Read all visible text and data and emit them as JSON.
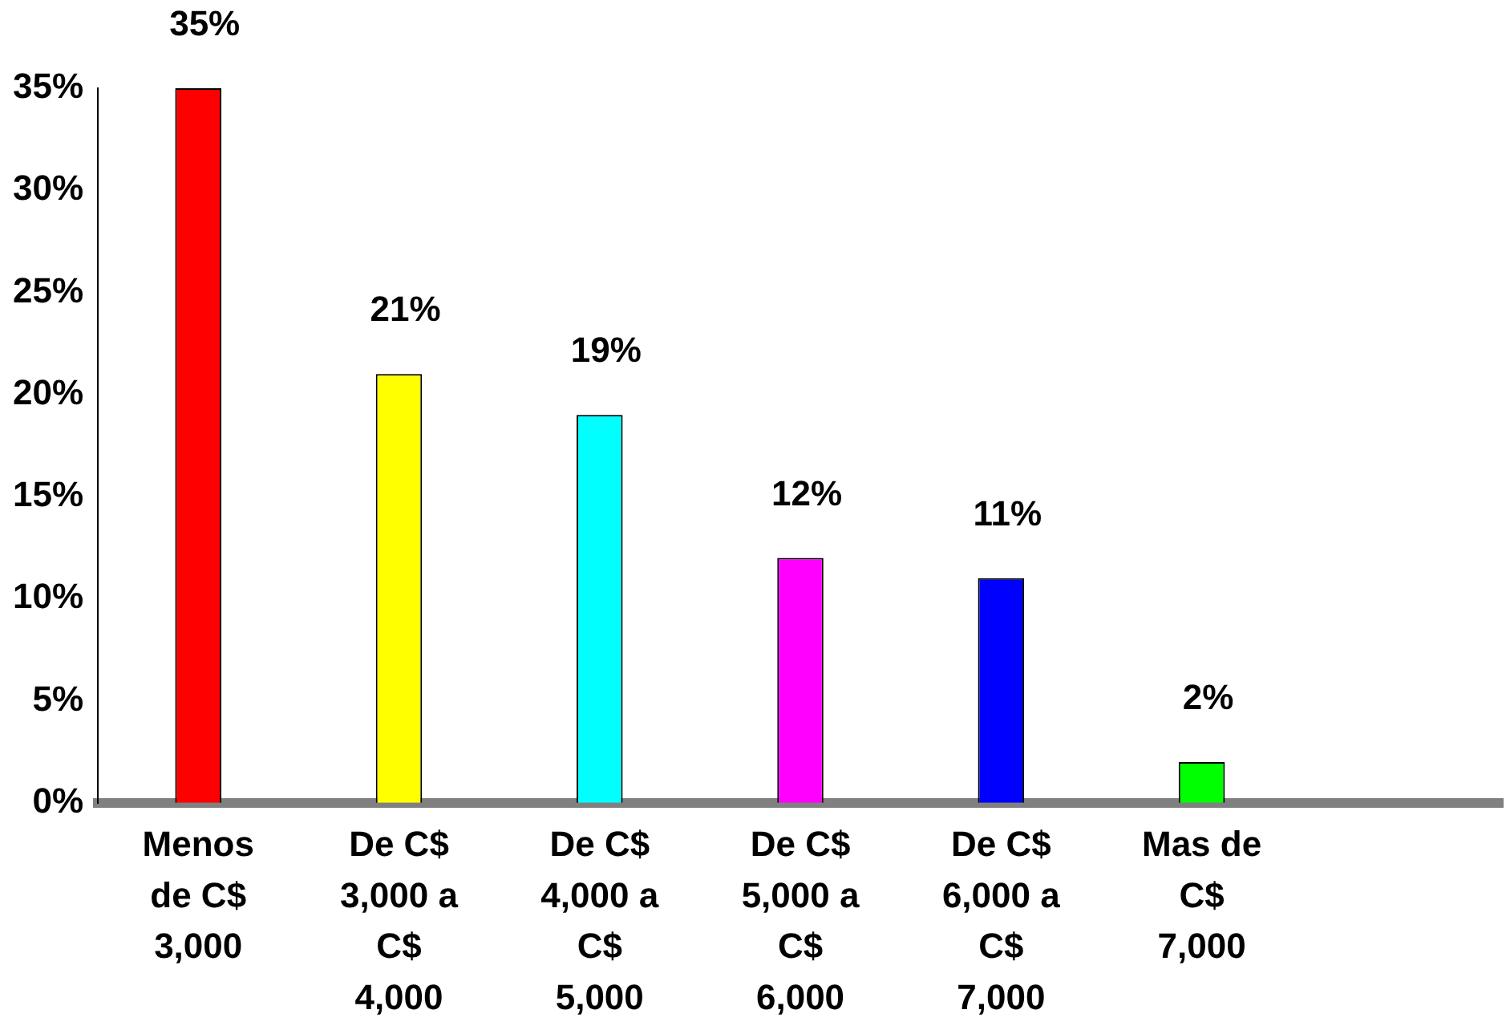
{
  "chart_data": {
    "type": "bar",
    "categories": [
      "Menos de C$ 3,000",
      "De C$ 3,000 a C$ 4,000",
      "De C$ 4,000 a C$ 5,000",
      "De C$ 5,000 a C$ 6,000",
      "De C$ 6,000 a C$ 7,000",
      "Mas de C$ 7,000",
      null
    ],
    "values": [
      35,
      21,
      19,
      12,
      11,
      2,
      null
    ],
    "colors": [
      "#ff0000",
      "#ffff00",
      "#00ffff",
      "#ff00ff",
      "#0000ff",
      "#00ff00",
      "#808080"
    ],
    "value_labels": [
      "35%",
      "21%",
      "19%",
      "12%",
      "11%",
      "2%",
      null
    ],
    "ylim": [
      0,
      35
    ],
    "yticks": [
      {
        "value": 0,
        "label": "0%"
      },
      {
        "value": 5,
        "label": "5%"
      },
      {
        "value": 10,
        "label": "10%"
      },
      {
        "value": 15,
        "label": "15%"
      },
      {
        "value": 20,
        "label": "20%"
      },
      {
        "value": 25,
        "label": "25%"
      },
      {
        "value": 30,
        "label": "30%"
      },
      {
        "value": 35,
        "label": "35%"
      }
    ],
    "grid": false,
    "legend": false
  }
}
